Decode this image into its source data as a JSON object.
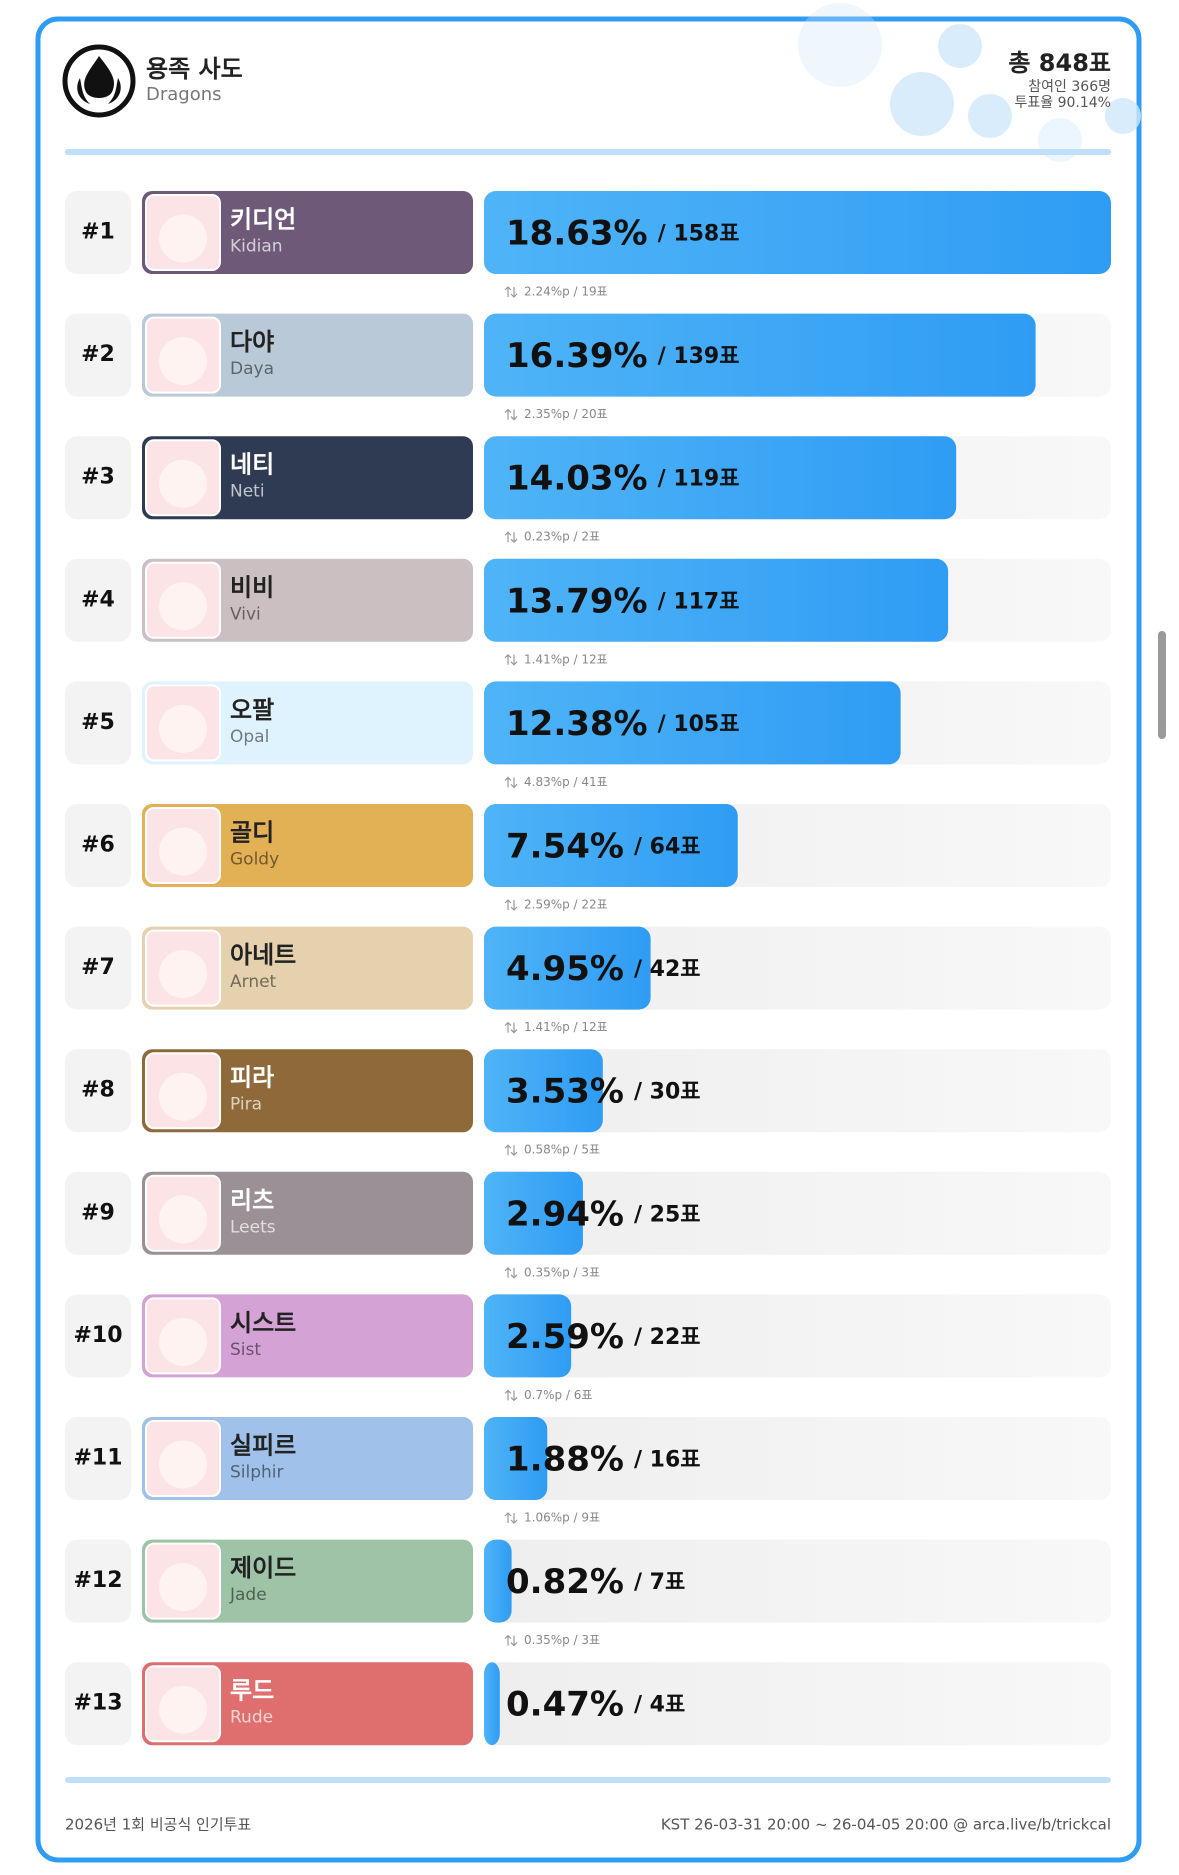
{
  "chart_data": {
    "type": "bar",
    "title": "용족 사도",
    "subtitle": "Dragons",
    "total": "총 848표",
    "participants": "참여인 366명",
    "turnout": "투표율 90.14%",
    "ranks": [
      "#1",
      "#2",
      "#3",
      "#4",
      "#5",
      "#6",
      "#7",
      "#8",
      "#9",
      "#10",
      "#11",
      "#12",
      "#13"
    ],
    "categories": [
      "키디언",
      "다야",
      "네티",
      "비비",
      "오팔",
      "골디",
      "아네트",
      "피라",
      "리츠",
      "시스트",
      "실피르",
      "제이드",
      "루드"
    ],
    "categories_en": [
      "Kidian",
      "Daya",
      "Neti",
      "Vivi",
      "Opal",
      "Goldy",
      "Arnet",
      "Pira",
      "Leets",
      "Sist",
      "Silphir",
      "Jade",
      "Rude"
    ],
    "values": [
      18.63,
      16.39,
      14.03,
      13.79,
      12.38,
      7.54,
      4.95,
      3.53,
      2.94,
      2.59,
      1.88,
      0.82,
      0.47
    ],
    "value_labels": [
      "18.63%",
      "16.39%",
      "14.03%",
      "13.79%",
      "12.38%",
      "7.54%",
      "4.95%",
      "3.53%",
      "2.94%",
      "2.59%",
      "1.88%",
      "0.82%",
      "0.47%"
    ],
    "votes": [
      158,
      139,
      119,
      117,
      105,
      64,
      42,
      30,
      25,
      22,
      16,
      7,
      4
    ],
    "vote_labels": [
      "/ 158표",
      "/ 139표",
      "/ 119표",
      "/ 117표",
      "/ 105표",
      "/ 64표",
      "/ 42표",
      "/ 30표",
      "/ 25표",
      "/ 22표",
      "/ 16표",
      "/ 7표",
      "/ 4표"
    ],
    "gaps": [
      "2.24%p / 19표",
      "2.35%p / 20표",
      "0.23%p / 2표",
      "1.41%p / 12표",
      "4.83%p / 41표",
      "2.59%p / 22표",
      "1.41%p / 12표",
      "0.58%p / 5표",
      "0.35%p / 3표",
      "0.7%p / 6표",
      "1.06%p / 9표",
      "0.35%p / 3표"
    ],
    "card_colors": [
      "#6e5a78",
      "#b9c9d7",
      "#2f3b52",
      "#cbbfc1",
      "#dff3ff",
      "#e2b055",
      "#e6d1ae",
      "#8e693a",
      "#9b9095",
      "#d5a2d6",
      "#a0c1e9",
      "#9ec3a7",
      "#df6f6f"
    ],
    "color": "#2f9cf4",
    "footer_left": "2026년 1회 비공식 인기투표",
    "footer_right": "KST 26-03-31 20:00 ~ 26-04-05 20:00 @ arca.live/b/trickcal"
  }
}
